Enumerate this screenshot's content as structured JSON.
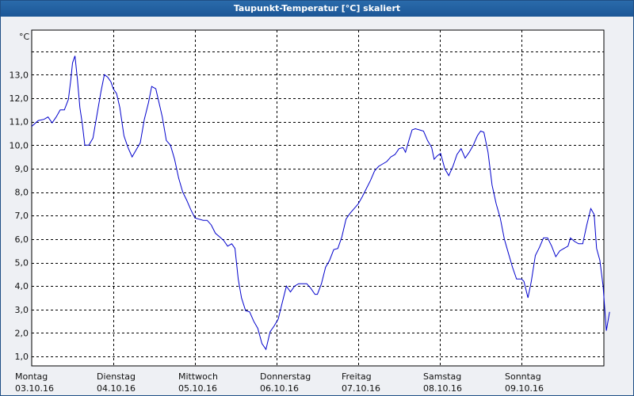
{
  "window": {
    "title": "Taupunkt-Temperatur [°C] skaliert"
  },
  "chart_data": {
    "type": "line",
    "title": "Taupunkt-Temperatur [°C] skaliert",
    "ylabel": "°C",
    "xlabel": "",
    "ylim": [
      0.6,
      14.9
    ],
    "xlim": [
      0,
      7.08
    ],
    "grid": true,
    "line_color": "#0000cc",
    "y_ticks": [
      {
        "v": 1.0,
        "label": "1,0"
      },
      {
        "v": 2.0,
        "label": "2,0"
      },
      {
        "v": 3.0,
        "label": "3,0"
      },
      {
        "v": 4.0,
        "label": "4,0"
      },
      {
        "v": 5.0,
        "label": "5,0"
      },
      {
        "v": 6.0,
        "label": "6,0"
      },
      {
        "v": 7.0,
        "label": "7,0"
      },
      {
        "v": 8.0,
        "label": "8,0"
      },
      {
        "v": 9.0,
        "label": "9,0"
      },
      {
        "v": 10.0,
        "label": "10,0"
      },
      {
        "v": 11.0,
        "label": "11,0"
      },
      {
        "v": 12.0,
        "label": "12,0"
      },
      {
        "v": 13.0,
        "label": "13,0"
      }
    ],
    "y_grid_extra": [
      14.0
    ],
    "days": [
      {
        "day": "Montag",
        "date": "03.10.16"
      },
      {
        "day": "Dienstag",
        "date": "04.10.16"
      },
      {
        "day": "Mittwoch",
        "date": "05.10.16"
      },
      {
        "day": "Donnerstag",
        "date": "06.10.16"
      },
      {
        "day": "Freitag",
        "date": "07.10.16"
      },
      {
        "day": "Samstag",
        "date": "08.10.16"
      },
      {
        "day": "Sonntag",
        "date": "09.10.16"
      }
    ],
    "series": [
      {
        "points": [
          [
            0.0,
            10.8
          ],
          [
            0.08,
            11.05
          ],
          [
            0.15,
            11.1
          ],
          [
            0.2,
            11.2
          ],
          [
            0.25,
            10.95
          ],
          [
            0.3,
            11.2
          ],
          [
            0.35,
            11.5
          ],
          [
            0.4,
            11.5
          ],
          [
            0.45,
            11.95
          ],
          [
            0.48,
            12.8
          ],
          [
            0.5,
            13.5
          ],
          [
            0.53,
            13.8
          ],
          [
            0.56,
            12.8
          ],
          [
            0.59,
            11.6
          ],
          [
            0.62,
            10.9
          ],
          [
            0.65,
            10.0
          ],
          [
            0.7,
            10.0
          ],
          [
            0.75,
            10.3
          ],
          [
            0.8,
            11.3
          ],
          [
            0.85,
            12.3
          ],
          [
            0.89,
            13.0
          ],
          [
            0.93,
            12.9
          ],
          [
            0.97,
            12.7
          ],
          [
            1.0,
            12.4
          ],
          [
            1.04,
            12.2
          ],
          [
            1.08,
            11.6
          ],
          [
            1.13,
            10.4
          ],
          [
            1.18,
            9.9
          ],
          [
            1.23,
            9.5
          ],
          [
            1.28,
            9.8
          ],
          [
            1.33,
            10.1
          ],
          [
            1.38,
            11.1
          ],
          [
            1.43,
            11.8
          ],
          [
            1.47,
            12.5
          ],
          [
            1.52,
            12.4
          ],
          [
            1.56,
            11.8
          ],
          [
            1.6,
            11.2
          ],
          [
            1.65,
            10.2
          ],
          [
            1.7,
            10.0
          ],
          [
            1.75,
            9.4
          ],
          [
            1.8,
            8.6
          ],
          [
            1.85,
            8.0
          ],
          [
            1.9,
            7.65
          ],
          [
            1.95,
            7.25
          ],
          [
            2.0,
            6.9
          ],
          [
            2.05,
            6.85
          ],
          [
            2.1,
            6.8
          ],
          [
            2.15,
            6.8
          ],
          [
            2.2,
            6.6
          ],
          [
            2.25,
            6.25
          ],
          [
            2.3,
            6.1
          ],
          [
            2.35,
            5.95
          ],
          [
            2.4,
            5.7
          ],
          [
            2.45,
            5.8
          ],
          [
            2.49,
            5.6
          ],
          [
            2.53,
            4.3
          ],
          [
            2.57,
            3.5
          ],
          [
            2.62,
            2.95
          ],
          [
            2.67,
            2.9
          ],
          [
            2.72,
            2.5
          ],
          [
            2.77,
            2.2
          ],
          [
            2.82,
            1.55
          ],
          [
            2.87,
            1.3
          ],
          [
            2.92,
            2.05
          ],
          [
            2.97,
            2.3
          ],
          [
            3.02,
            2.6
          ],
          [
            3.07,
            3.3
          ],
          [
            3.12,
            4.0
          ],
          [
            3.17,
            3.75
          ],
          [
            3.22,
            4.0
          ],
          [
            3.27,
            4.1
          ],
          [
            3.32,
            4.1
          ],
          [
            3.37,
            4.1
          ],
          [
            3.42,
            3.9
          ],
          [
            3.47,
            3.65
          ],
          [
            3.5,
            3.65
          ],
          [
            3.55,
            4.1
          ],
          [
            3.6,
            4.8
          ],
          [
            3.65,
            5.1
          ],
          [
            3.7,
            5.55
          ],
          [
            3.75,
            5.6
          ],
          [
            3.8,
            6.1
          ],
          [
            3.85,
            6.85
          ],
          [
            3.9,
            7.1
          ],
          [
            3.95,
            7.3
          ],
          [
            4.0,
            7.5
          ],
          [
            4.05,
            7.8
          ],
          [
            4.1,
            8.15
          ],
          [
            4.15,
            8.5
          ],
          [
            4.2,
            8.9
          ],
          [
            4.25,
            9.1
          ],
          [
            4.3,
            9.2
          ],
          [
            4.35,
            9.3
          ],
          [
            4.4,
            9.5
          ],
          [
            4.45,
            9.6
          ],
          [
            4.5,
            9.85
          ],
          [
            4.55,
            9.9
          ],
          [
            4.58,
            9.7
          ],
          [
            4.62,
            10.2
          ],
          [
            4.66,
            10.65
          ],
          [
            4.7,
            10.7
          ],
          [
            4.75,
            10.65
          ],
          [
            4.8,
            10.6
          ],
          [
            4.85,
            10.2
          ],
          [
            4.9,
            9.9
          ],
          [
            4.93,
            9.4
          ],
          [
            4.97,
            9.55
          ],
          [
            5.01,
            9.65
          ],
          [
            5.06,
            9.0
          ],
          [
            5.11,
            8.7
          ],
          [
            5.16,
            9.1
          ],
          [
            5.21,
            9.6
          ],
          [
            5.26,
            9.85
          ],
          [
            5.31,
            9.45
          ],
          [
            5.36,
            9.7
          ],
          [
            5.41,
            10.0
          ],
          [
            5.46,
            10.4
          ],
          [
            5.5,
            10.6
          ],
          [
            5.54,
            10.55
          ],
          [
            5.59,
            9.7
          ],
          [
            5.64,
            8.3
          ],
          [
            5.69,
            7.5
          ],
          [
            5.74,
            6.9
          ],
          [
            5.79,
            6.0
          ],
          [
            5.84,
            5.4
          ],
          [
            5.89,
            4.8
          ],
          [
            5.94,
            4.3
          ],
          [
            6.0,
            4.3
          ],
          [
            6.03,
            4.2
          ],
          [
            6.08,
            3.5
          ],
          [
            6.12,
            4.2
          ],
          [
            6.17,
            5.3
          ],
          [
            6.22,
            5.65
          ],
          [
            6.27,
            6.05
          ],
          [
            6.32,
            6.05
          ],
          [
            6.37,
            5.7
          ],
          [
            6.42,
            5.25
          ],
          [
            6.47,
            5.5
          ],
          [
            6.52,
            5.6
          ],
          [
            6.57,
            5.7
          ],
          [
            6.6,
            6.05
          ],
          [
            6.65,
            5.9
          ],
          [
            6.7,
            5.8
          ],
          [
            6.75,
            5.8
          ],
          [
            6.8,
            6.6
          ],
          [
            6.85,
            7.3
          ],
          [
            6.89,
            7.05
          ],
          [
            6.92,
            5.6
          ],
          [
            6.96,
            5.1
          ],
          [
            7.0,
            4.0
          ],
          [
            7.04,
            2.1
          ],
          [
            7.08,
            2.9
          ]
        ]
      }
    ]
  }
}
